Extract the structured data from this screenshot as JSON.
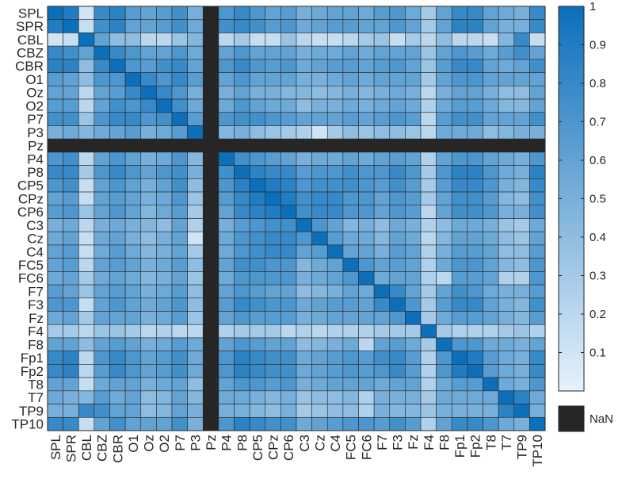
{
  "chart_data": {
    "type": "heatmap",
    "labels": [
      "SPL",
      "SPR",
      "CBL",
      "CBZ",
      "CBR",
      "O1",
      "Oz",
      "O2",
      "P7",
      "P3",
      "Pz",
      "P4",
      "P8",
      "CP5",
      "CPz",
      "CP6",
      "C3",
      "Cz",
      "C4",
      "FC5",
      "FC6",
      "F7",
      "F3",
      "Fz",
      "F4",
      "F8",
      "Fp1",
      "Fp2",
      "T8",
      "T7",
      "TP9",
      "TP10"
    ],
    "nan_index": 10,
    "colorbar": {
      "range": [
        0,
        1
      ],
      "ticks": [
        "0.1",
        "0.2",
        "0.3",
        "0.4",
        "0.5",
        "0.6",
        "0.7",
        "0.8",
        "0.9",
        "1"
      ],
      "nan_label": "NaN",
      "color_low": "#e7f1fb",
      "color_high": "#0b6fba",
      "nan_color": "#262626"
    },
    "matrix": [
      [
        1.0,
        0.9,
        0.1,
        0.8,
        0.85,
        0.65,
        0.6,
        0.65,
        0.75,
        0.5,
        null,
        0.7,
        0.8,
        0.7,
        0.6,
        0.65,
        0.5,
        0.55,
        0.6,
        0.6,
        0.55,
        0.65,
        0.7,
        0.55,
        0.3,
        0.6,
        0.8,
        0.8,
        0.6,
        0.55,
        0.5,
        0.8
      ],
      [
        0.9,
        1.0,
        0.15,
        0.75,
        0.85,
        0.6,
        0.6,
        0.65,
        0.75,
        0.55,
        null,
        0.75,
        0.8,
        0.75,
        0.65,
        0.7,
        0.55,
        0.6,
        0.65,
        0.65,
        0.6,
        0.6,
        0.7,
        0.6,
        0.3,
        0.6,
        0.85,
        0.85,
        0.6,
        0.5,
        0.5,
        0.8
      ],
      [
        0.1,
        0.15,
        1.0,
        0.6,
        0.4,
        0.4,
        0.2,
        0.2,
        0.35,
        0.45,
        null,
        0.2,
        0.3,
        0.15,
        0.15,
        0.35,
        0.2,
        0.15,
        0.15,
        0.2,
        0.3,
        0.35,
        0.15,
        0.3,
        0.2,
        0.4,
        0.2,
        0.2,
        0.15,
        0.45,
        0.8,
        0.15
      ],
      [
        0.8,
        0.75,
        0.6,
        1.0,
        0.8,
        0.7,
        0.6,
        0.6,
        0.7,
        0.55,
        null,
        0.6,
        0.7,
        0.6,
        0.6,
        0.6,
        0.5,
        0.55,
        0.55,
        0.6,
        0.55,
        0.6,
        0.6,
        0.6,
        0.35,
        0.6,
        0.7,
        0.65,
        0.55,
        0.65,
        0.75,
        0.6
      ],
      [
        0.85,
        0.85,
        0.4,
        0.8,
        1.0,
        0.7,
        0.65,
        0.75,
        0.8,
        0.6,
        null,
        0.7,
        0.8,
        0.7,
        0.65,
        0.7,
        0.55,
        0.6,
        0.65,
        0.65,
        0.6,
        0.65,
        0.7,
        0.6,
        0.35,
        0.65,
        0.8,
        0.8,
        0.6,
        0.55,
        0.6,
        0.75
      ],
      [
        0.65,
        0.6,
        0.4,
        0.7,
        0.7,
        1.0,
        0.8,
        0.7,
        0.8,
        0.65,
        null,
        0.6,
        0.7,
        0.6,
        0.6,
        0.6,
        0.5,
        0.5,
        0.55,
        0.6,
        0.55,
        0.6,
        0.6,
        0.6,
        0.3,
        0.6,
        0.7,
        0.7,
        0.6,
        0.6,
        0.6,
        0.6
      ],
      [
        0.6,
        0.6,
        0.2,
        0.6,
        0.65,
        0.8,
        1.0,
        0.8,
        0.7,
        0.5,
        null,
        0.5,
        0.6,
        0.5,
        0.5,
        0.45,
        0.45,
        0.4,
        0.45,
        0.5,
        0.45,
        0.5,
        0.55,
        0.5,
        0.2,
        0.5,
        0.6,
        0.6,
        0.5,
        0.4,
        0.4,
        0.6
      ],
      [
        0.65,
        0.65,
        0.2,
        0.6,
        0.75,
        0.7,
        0.8,
        1.0,
        0.75,
        0.55,
        null,
        0.55,
        0.7,
        0.6,
        0.55,
        0.55,
        0.4,
        0.5,
        0.5,
        0.55,
        0.5,
        0.55,
        0.6,
        0.55,
        0.25,
        0.55,
        0.65,
        0.65,
        0.55,
        0.45,
        0.45,
        0.6
      ],
      [
        0.75,
        0.75,
        0.35,
        0.7,
        0.8,
        0.8,
        0.7,
        0.75,
        1.0,
        0.65,
        null,
        0.7,
        0.75,
        0.75,
        0.7,
        0.65,
        0.6,
        0.6,
        0.6,
        0.65,
        0.6,
        0.65,
        0.7,
        0.65,
        0.2,
        0.65,
        0.75,
        0.75,
        0.6,
        0.6,
        0.6,
        0.75
      ],
      [
        0.5,
        0.55,
        0.45,
        0.55,
        0.6,
        0.65,
        0.5,
        0.55,
        0.65,
        1.0,
        null,
        0.45,
        0.5,
        0.4,
        0.35,
        0.3,
        0.25,
        0.1,
        0.3,
        0.4,
        0.35,
        0.4,
        0.4,
        0.35,
        0.2,
        0.55,
        0.55,
        0.55,
        0.4,
        0.45,
        0.5,
        0.5
      ],
      [
        null,
        null,
        null,
        null,
        null,
        null,
        null,
        null,
        null,
        null,
        null,
        null,
        null,
        null,
        null,
        null,
        null,
        null,
        null,
        null,
        null,
        null,
        null,
        null,
        null,
        null,
        null,
        null,
        null,
        null,
        null,
        null
      ],
      [
        0.7,
        0.75,
        0.2,
        0.6,
        0.7,
        0.6,
        0.5,
        0.55,
        0.7,
        0.45,
        null,
        1.0,
        0.75,
        0.7,
        0.65,
        0.6,
        0.5,
        0.55,
        0.55,
        0.6,
        0.55,
        0.6,
        0.65,
        0.6,
        0.25,
        0.6,
        0.7,
        0.7,
        0.6,
        0.55,
        0.5,
        0.7
      ],
      [
        0.8,
        0.8,
        0.3,
        0.7,
        0.8,
        0.7,
        0.6,
        0.7,
        0.75,
        0.5,
        null,
        0.75,
        1.0,
        0.85,
        0.8,
        0.8,
        0.65,
        0.7,
        0.7,
        0.75,
        0.7,
        0.7,
        0.8,
        0.7,
        0.3,
        0.7,
        0.85,
        0.85,
        0.7,
        0.55,
        0.5,
        0.85
      ],
      [
        0.7,
        0.75,
        0.15,
        0.6,
        0.7,
        0.6,
        0.5,
        0.6,
        0.75,
        0.4,
        null,
        0.7,
        0.85,
        1.0,
        0.9,
        0.85,
        0.7,
        0.75,
        0.75,
        0.75,
        0.7,
        0.65,
        0.75,
        0.65,
        0.3,
        0.65,
        0.8,
        0.8,
        0.7,
        0.5,
        0.45,
        0.8
      ],
      [
        0.6,
        0.65,
        0.15,
        0.6,
        0.65,
        0.6,
        0.5,
        0.55,
        0.7,
        0.35,
        null,
        0.65,
        0.8,
        0.9,
        1.0,
        0.9,
        0.75,
        0.8,
        0.8,
        0.7,
        0.7,
        0.6,
        0.7,
        0.65,
        0.3,
        0.6,
        0.75,
        0.75,
        0.65,
        0.45,
        0.4,
        0.75
      ],
      [
        0.65,
        0.7,
        0.35,
        0.6,
        0.7,
        0.6,
        0.45,
        0.55,
        0.65,
        0.3,
        null,
        0.6,
        0.8,
        0.85,
        0.9,
        1.0,
        0.75,
        0.8,
        0.8,
        0.7,
        0.7,
        0.6,
        0.7,
        0.65,
        0.2,
        0.6,
        0.75,
        0.75,
        0.7,
        0.5,
        0.5,
        0.75
      ],
      [
        0.5,
        0.55,
        0.2,
        0.5,
        0.55,
        0.5,
        0.45,
        0.4,
        0.6,
        0.25,
        null,
        0.5,
        0.65,
        0.7,
        0.75,
        0.75,
        1.0,
        0.7,
        0.6,
        0.45,
        0.5,
        0.4,
        0.55,
        0.5,
        0.25,
        0.4,
        0.55,
        0.55,
        0.5,
        0.35,
        0.3,
        0.55
      ],
      [
        0.55,
        0.6,
        0.15,
        0.55,
        0.6,
        0.5,
        0.4,
        0.5,
        0.6,
        0.1,
        null,
        0.55,
        0.7,
        0.75,
        0.8,
        0.8,
        0.7,
        1.0,
        0.65,
        0.55,
        0.55,
        0.45,
        0.6,
        0.55,
        0.2,
        0.45,
        0.6,
        0.6,
        0.55,
        0.4,
        0.35,
        0.6
      ],
      [
        0.6,
        0.65,
        0.15,
        0.55,
        0.65,
        0.55,
        0.45,
        0.5,
        0.6,
        0.3,
        null,
        0.55,
        0.7,
        0.75,
        0.8,
        0.8,
        0.6,
        0.65,
        1.0,
        0.6,
        0.6,
        0.5,
        0.65,
        0.6,
        0.25,
        0.5,
        0.65,
        0.65,
        0.6,
        0.4,
        0.4,
        0.65
      ],
      [
        0.6,
        0.65,
        0.2,
        0.6,
        0.65,
        0.6,
        0.5,
        0.55,
        0.65,
        0.4,
        null,
        0.6,
        0.75,
        0.75,
        0.7,
        0.7,
        0.45,
        0.55,
        0.6,
        1.0,
        0.7,
        0.6,
        0.65,
        0.6,
        0.25,
        0.55,
        0.7,
        0.7,
        0.6,
        0.45,
        0.4,
        0.7
      ],
      [
        0.55,
        0.6,
        0.3,
        0.55,
        0.6,
        0.55,
        0.45,
        0.5,
        0.6,
        0.35,
        null,
        0.55,
        0.7,
        0.7,
        0.7,
        0.7,
        0.5,
        0.55,
        0.6,
        0.7,
        1.0,
        0.55,
        0.6,
        0.6,
        0.25,
        0.2,
        0.65,
        0.65,
        0.6,
        0.25,
        0.25,
        0.7
      ],
      [
        0.65,
        0.6,
        0.35,
        0.6,
        0.65,
        0.6,
        0.5,
        0.55,
        0.65,
        0.4,
        null,
        0.6,
        0.7,
        0.65,
        0.6,
        0.6,
        0.4,
        0.45,
        0.5,
        0.6,
        0.55,
        1.0,
        0.8,
        0.6,
        0.3,
        0.6,
        0.75,
        0.7,
        0.55,
        0.5,
        0.5,
        0.65
      ],
      [
        0.7,
        0.7,
        0.15,
        0.6,
        0.7,
        0.6,
        0.55,
        0.6,
        0.7,
        0.4,
        null,
        0.65,
        0.8,
        0.75,
        0.7,
        0.7,
        0.55,
        0.6,
        0.65,
        0.65,
        0.6,
        0.8,
        1.0,
        0.7,
        0.3,
        0.65,
        0.8,
        0.8,
        0.6,
        0.5,
        0.45,
        0.75
      ],
      [
        0.55,
        0.6,
        0.3,
        0.6,
        0.6,
        0.6,
        0.5,
        0.55,
        0.65,
        0.35,
        null,
        0.6,
        0.7,
        0.65,
        0.65,
        0.65,
        0.5,
        0.55,
        0.6,
        0.6,
        0.6,
        0.6,
        0.7,
        1.0,
        0.3,
        0.55,
        0.65,
        0.65,
        0.6,
        0.5,
        0.45,
        0.65
      ],
      [
        0.3,
        0.3,
        0.2,
        0.35,
        0.35,
        0.3,
        0.2,
        0.25,
        0.2,
        0.2,
        null,
        0.25,
        0.3,
        0.3,
        0.3,
        0.2,
        0.25,
        0.2,
        0.25,
        0.25,
        0.25,
        0.3,
        0.3,
        0.3,
        1.0,
        0.3,
        0.25,
        0.25,
        0.25,
        0.3,
        0.35,
        0.25
      ],
      [
        0.6,
        0.6,
        0.4,
        0.6,
        0.65,
        0.6,
        0.5,
        0.55,
        0.65,
        0.55,
        null,
        0.6,
        0.7,
        0.65,
        0.6,
        0.6,
        0.4,
        0.45,
        0.5,
        0.55,
        0.2,
        0.6,
        0.65,
        0.55,
        0.3,
        1.0,
        0.7,
        0.7,
        0.55,
        0.55,
        0.5,
        0.6
      ],
      [
        0.8,
        0.85,
        0.2,
        0.7,
        0.8,
        0.7,
        0.6,
        0.65,
        0.75,
        0.55,
        null,
        0.7,
        0.85,
        0.8,
        0.75,
        0.75,
        0.55,
        0.6,
        0.65,
        0.7,
        0.65,
        0.75,
        0.8,
        0.65,
        0.25,
        0.7,
        1.0,
        0.9,
        0.65,
        0.55,
        0.5,
        0.8
      ],
      [
        0.8,
        0.85,
        0.2,
        0.65,
        0.8,
        0.7,
        0.6,
        0.65,
        0.75,
        0.55,
        null,
        0.7,
        0.85,
        0.8,
        0.75,
        0.75,
        0.55,
        0.6,
        0.65,
        0.7,
        0.65,
        0.7,
        0.8,
        0.65,
        0.25,
        0.7,
        0.9,
        1.0,
        0.65,
        0.55,
        0.5,
        0.8
      ],
      [
        0.6,
        0.6,
        0.15,
        0.55,
        0.6,
        0.6,
        0.5,
        0.55,
        0.6,
        0.4,
        null,
        0.6,
        0.7,
        0.7,
        0.65,
        0.7,
        0.5,
        0.55,
        0.6,
        0.6,
        0.6,
        0.55,
        0.6,
        0.6,
        0.25,
        0.55,
        0.65,
        0.65,
        1.0,
        0.55,
        0.5,
        0.7
      ],
      [
        0.55,
        0.5,
        0.45,
        0.65,
        0.55,
        0.6,
        0.4,
        0.45,
        0.6,
        0.45,
        null,
        0.55,
        0.55,
        0.5,
        0.45,
        0.5,
        0.35,
        0.4,
        0.4,
        0.45,
        0.25,
        0.5,
        0.5,
        0.5,
        0.3,
        0.55,
        0.55,
        0.55,
        0.55,
        1.0,
        0.85,
        0.55
      ],
      [
        0.5,
        0.5,
        0.8,
        0.75,
        0.6,
        0.6,
        0.4,
        0.45,
        0.6,
        0.5,
        null,
        0.5,
        0.5,
        0.45,
        0.4,
        0.5,
        0.3,
        0.35,
        0.4,
        0.4,
        0.25,
        0.5,
        0.45,
        0.45,
        0.35,
        0.5,
        0.5,
        0.5,
        0.5,
        0.85,
        1.0,
        0.5
      ],
      [
        0.8,
        0.8,
        0.15,
        0.6,
        0.75,
        0.6,
        0.6,
        0.6,
        0.75,
        0.5,
        null,
        0.7,
        0.85,
        0.8,
        0.75,
        0.75,
        0.55,
        0.6,
        0.65,
        0.7,
        0.7,
        0.65,
        0.75,
        0.65,
        0.25,
        0.6,
        0.8,
        0.8,
        0.7,
        0.55,
        0.5,
        1.0
      ]
    ]
  }
}
